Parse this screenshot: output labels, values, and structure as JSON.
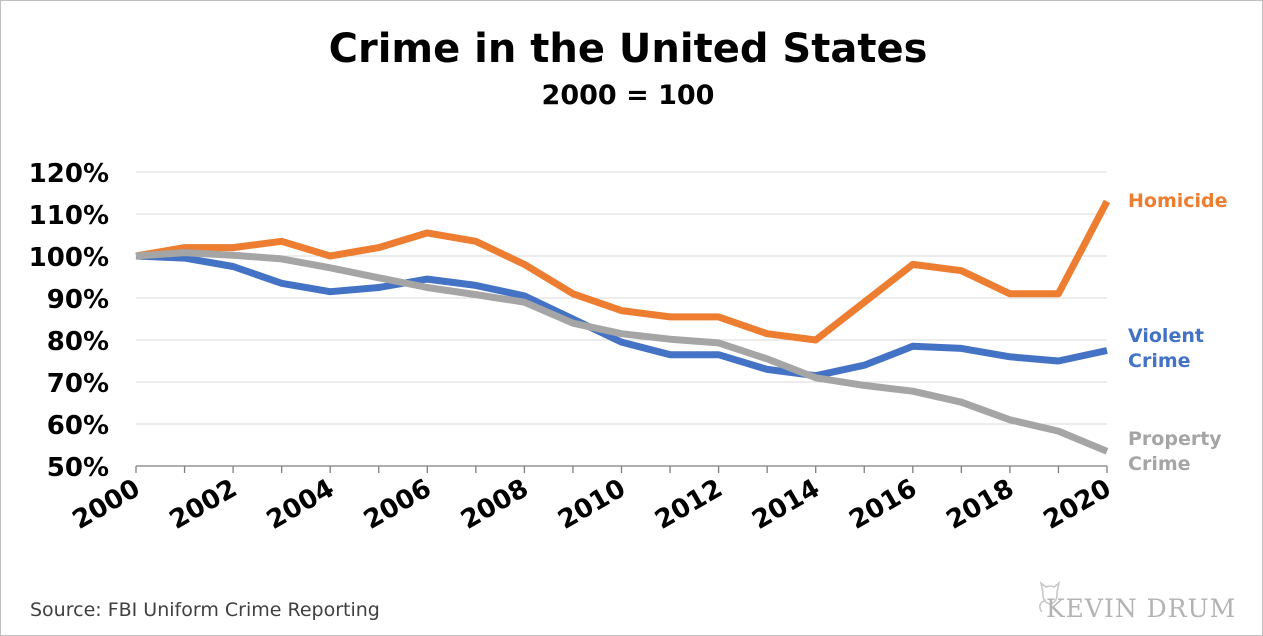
{
  "chart_data": {
    "type": "line",
    "title": "Crime in the United States",
    "subtitle": "2000 = 100",
    "x": [
      2000,
      2001,
      2002,
      2003,
      2004,
      2005,
      2006,
      2007,
      2008,
      2009,
      2010,
      2011,
      2012,
      2013,
      2014,
      2015,
      2016,
      2017,
      2018,
      2019,
      2020
    ],
    "x_tick_labels": [
      "2000",
      "2002",
      "2004",
      "2006",
      "2008",
      "2010",
      "2012",
      "2014",
      "2016",
      "2018",
      "2020"
    ],
    "y_tick_labels": [
      "120%",
      "110%",
      "100%",
      "90%",
      "80%",
      "70%",
      "60%",
      "50%"
    ],
    "ylim": [
      50,
      120
    ],
    "grid": true,
    "series": [
      {
        "name": "Homicide",
        "color": "#ed7d31",
        "values": [
          100,
          102,
          102,
          103.5,
          100,
          102,
          105.5,
          103.5,
          98,
          91,
          87,
          85.5,
          85.5,
          81.5,
          80,
          89,
          98,
          96.5,
          91,
          91,
          113
        ]
      },
      {
        "name": "Violent Crime",
        "label_lines": [
          "Violent",
          "Crime"
        ],
        "color": "#4472c4",
        "values": [
          100,
          99.5,
          97.5,
          93.5,
          91.5,
          92.5,
          94.5,
          93,
          90.5,
          85,
          79.5,
          76.5,
          76.5,
          73,
          71.5,
          74,
          78.5,
          78,
          76,
          75,
          77.5
        ]
      },
      {
        "name": "Property Crime",
        "label_lines": [
          "Property",
          "Crime"
        ],
        "color": "#a5a5a5",
        "values": [
          100,
          100.8,
          100.2,
          99.3,
          97.2,
          94.8,
          92.5,
          90.8,
          89,
          84,
          81.5,
          80.2,
          79.3,
          75.5,
          71,
          69.2,
          67.8,
          65.2,
          61,
          58.3,
          53.5
        ]
      }
    ]
  },
  "footer": {
    "source": "Source: FBI Uniform Crime Reporting",
    "logo_text": "KEVIN DRUM",
    "logo_icon": "cat-icon"
  }
}
